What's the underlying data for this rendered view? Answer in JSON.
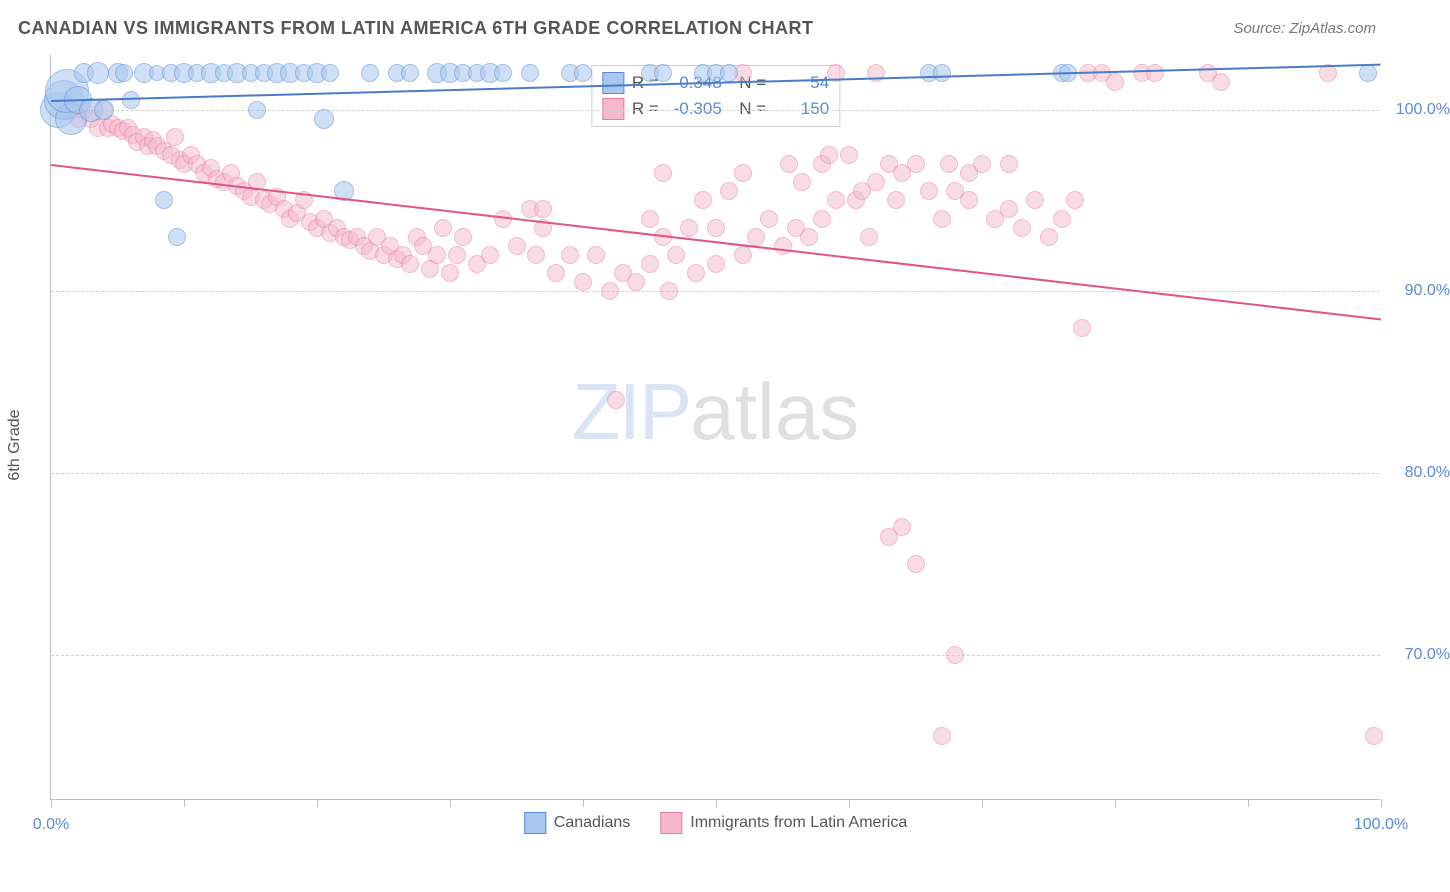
{
  "header": {
    "title": "CANADIAN VS IMMIGRANTS FROM LATIN AMERICA 6TH GRADE CORRELATION CHART",
    "source": "Source: ZipAtlas.com"
  },
  "chart": {
    "type": "scatter",
    "y_axis_title": "6th Grade",
    "xlim": [
      0,
      100
    ],
    "ylim": [
      62,
      103
    ],
    "x_ticks": [
      0,
      10,
      20,
      30,
      40,
      50,
      60,
      70,
      80,
      90,
      100
    ],
    "x_tick_labels": {
      "0": "0.0%",
      "100": "100.0%"
    },
    "y_ticks": [
      70,
      80,
      90,
      100
    ],
    "y_tick_labels": {
      "70": "70.0%",
      "80": "80.0%",
      "90": "90.0%",
      "100": "100.0%"
    },
    "background_color": "#ffffff",
    "grid_color": "#d0d0d0",
    "axis_color": "#c0c0c0",
    "tick_label_color": "#5b8bd4",
    "series": [
      {
        "name": "Canadians",
        "fill_color": "#a8c8f0",
        "stroke_color": "#5b8bd4",
        "fill_opacity": 0.55,
        "line_color": "#4a7bc8",
        "R": "0.348",
        "N": "54",
        "trend": {
          "x1": 0,
          "y1": 100.5,
          "x2": 100,
          "y2": 102.5
        },
        "points": [
          {
            "x": 0.5,
            "y": 100,
            "r": 18
          },
          {
            "x": 1,
            "y": 100.5,
            "r": 20
          },
          {
            "x": 1.5,
            "y": 99.5,
            "r": 16
          },
          {
            "x": 1.2,
            "y": 101,
            "r": 22
          },
          {
            "x": 2,
            "y": 100.5,
            "r": 14
          },
          {
            "x": 2.5,
            "y": 102,
            "r": 10
          },
          {
            "x": 3,
            "y": 100,
            "r": 12
          },
          {
            "x": 3.5,
            "y": 102,
            "r": 11
          },
          {
            "x": 4,
            "y": 100,
            "r": 10
          },
          {
            "x": 5,
            "y": 102,
            "r": 10
          },
          {
            "x": 5.5,
            "y": 102,
            "r": 9
          },
          {
            "x": 6,
            "y": 100.5,
            "r": 9
          },
          {
            "x": 7,
            "y": 102,
            "r": 10
          },
          {
            "x": 8,
            "y": 102,
            "r": 8
          },
          {
            "x": 8.5,
            "y": 95,
            "r": 9
          },
          {
            "x": 9,
            "y": 102,
            "r": 9
          },
          {
            "x": 10,
            "y": 102,
            "r": 10
          },
          {
            "x": 11,
            "y": 102,
            "r": 9
          },
          {
            "x": 12,
            "y": 102,
            "r": 10
          },
          {
            "x": 13,
            "y": 102,
            "r": 9
          },
          {
            "x": 14,
            "y": 102,
            "r": 10
          },
          {
            "x": 15,
            "y": 102,
            "r": 9
          },
          {
            "x": 15.5,
            "y": 100,
            "r": 9
          },
          {
            "x": 16,
            "y": 102,
            "r": 9
          },
          {
            "x": 17,
            "y": 102,
            "r": 10
          },
          {
            "x": 18,
            "y": 102,
            "r": 10
          },
          {
            "x": 19,
            "y": 102,
            "r": 9
          },
          {
            "x": 20,
            "y": 102,
            "r": 10
          },
          {
            "x": 20.5,
            "y": 99.5,
            "r": 10
          },
          {
            "x": 21,
            "y": 102,
            "r": 9
          },
          {
            "x": 22,
            "y": 95.5,
            "r": 10
          },
          {
            "x": 24,
            "y": 102,
            "r": 9
          },
          {
            "x": 26,
            "y": 102,
            "r": 9
          },
          {
            "x": 27,
            "y": 102,
            "r": 9
          },
          {
            "x": 29,
            "y": 102,
            "r": 10
          },
          {
            "x": 30,
            "y": 102,
            "r": 10
          },
          {
            "x": 31,
            "y": 102,
            "r": 9
          },
          {
            "x": 32,
            "y": 102,
            "r": 9
          },
          {
            "x": 33,
            "y": 102,
            "r": 10
          },
          {
            "x": 34,
            "y": 102,
            "r": 9
          },
          {
            "x": 36,
            "y": 102,
            "r": 9
          },
          {
            "x": 45,
            "y": 102,
            "r": 9
          },
          {
            "x": 46,
            "y": 102,
            "r": 9
          },
          {
            "x": 49,
            "y": 102,
            "r": 9
          },
          {
            "x": 50,
            "y": 102,
            "r": 9
          },
          {
            "x": 51,
            "y": 102,
            "r": 9
          },
          {
            "x": 9.5,
            "y": 93,
            "r": 9
          },
          {
            "x": 66,
            "y": 102,
            "r": 9
          },
          {
            "x": 67,
            "y": 102,
            "r": 9
          },
          {
            "x": 76,
            "y": 102,
            "r": 9
          },
          {
            "x": 76.5,
            "y": 102,
            "r": 9
          },
          {
            "x": 99,
            "y": 102,
            "r": 9
          },
          {
            "x": 39,
            "y": 102,
            "r": 9
          },
          {
            "x": 40,
            "y": 102,
            "r": 9
          }
        ]
      },
      {
        "name": "Immigrants from Latin America",
        "fill_color": "#f5b8cc",
        "stroke_color": "#e77ba1",
        "fill_opacity": 0.5,
        "line_color": "#e0568c",
        "R": "-0.305",
        "N": "150",
        "trend": {
          "x1": 0,
          "y1": 97,
          "x2": 100,
          "y2": 88.5
        },
        "points": [
          {
            "x": 1,
            "y": 100,
            "r": 10
          },
          {
            "x": 1.5,
            "y": 100,
            "r": 10
          },
          {
            "x": 2,
            "y": 99.5,
            "r": 9
          },
          {
            "x": 2.5,
            "y": 100,
            "r": 9
          },
          {
            "x": 3,
            "y": 99.5,
            "r": 9
          },
          {
            "x": 3.5,
            "y": 99,
            "r": 9
          },
          {
            "x": 4,
            "y": 100,
            "r": 9
          },
          {
            "x": 4.3,
            "y": 99,
            "r": 9
          },
          {
            "x": 4.6,
            "y": 99.2,
            "r": 9
          },
          {
            "x": 5,
            "y": 99,
            "r": 9
          },
          {
            "x": 5.4,
            "y": 98.8,
            "r": 9
          },
          {
            "x": 5.8,
            "y": 99,
            "r": 9
          },
          {
            "x": 6.2,
            "y": 98.6,
            "r": 9
          },
          {
            "x": 6.5,
            "y": 98.2,
            "r": 9
          },
          {
            "x": 7,
            "y": 98.5,
            "r": 9
          },
          {
            "x": 7.3,
            "y": 98,
            "r": 9
          },
          {
            "x": 7.7,
            "y": 98.3,
            "r": 9
          },
          {
            "x": 8,
            "y": 98,
            "r": 9
          },
          {
            "x": 8.5,
            "y": 97.7,
            "r": 9
          },
          {
            "x": 9,
            "y": 97.5,
            "r": 9
          },
          {
            "x": 9.3,
            "y": 98.5,
            "r": 9
          },
          {
            "x": 9.7,
            "y": 97.2,
            "r": 9
          },
          {
            "x": 10,
            "y": 97,
            "r": 9
          },
          {
            "x": 10.5,
            "y": 97.5,
            "r": 9
          },
          {
            "x": 11,
            "y": 97,
            "r": 9
          },
          {
            "x": 11.5,
            "y": 96.5,
            "r": 9
          },
          {
            "x": 12,
            "y": 96.8,
            "r": 9
          },
          {
            "x": 12.5,
            "y": 96.2,
            "r": 9
          },
          {
            "x": 13,
            "y": 96,
            "r": 9
          },
          {
            "x": 13.5,
            "y": 96.5,
            "r": 9
          },
          {
            "x": 14,
            "y": 95.8,
            "r": 9
          },
          {
            "x": 14.5,
            "y": 95.5,
            "r": 9
          },
          {
            "x": 15,
            "y": 95.2,
            "r": 9
          },
          {
            "x": 15.5,
            "y": 96,
            "r": 9
          },
          {
            "x": 16,
            "y": 95,
            "r": 9
          },
          {
            "x": 16.5,
            "y": 94.8,
            "r": 9
          },
          {
            "x": 17,
            "y": 95.2,
            "r": 9
          },
          {
            "x": 17.5,
            "y": 94.5,
            "r": 9
          },
          {
            "x": 18,
            "y": 94,
            "r": 9
          },
          {
            "x": 18.5,
            "y": 94.3,
            "r": 9
          },
          {
            "x": 19,
            "y": 95,
            "r": 9
          },
          {
            "x": 19.5,
            "y": 93.8,
            "r": 9
          },
          {
            "x": 20,
            "y": 93.5,
            "r": 9
          },
          {
            "x": 20.5,
            "y": 94,
            "r": 9
          },
          {
            "x": 21,
            "y": 93.2,
            "r": 9
          },
          {
            "x": 21.5,
            "y": 93.5,
            "r": 9
          },
          {
            "x": 22,
            "y": 93,
            "r": 9
          },
          {
            "x": 22.5,
            "y": 92.8,
            "r": 9
          },
          {
            "x": 23,
            "y": 93,
            "r": 9
          },
          {
            "x": 23.5,
            "y": 92.5,
            "r": 9
          },
          {
            "x": 24,
            "y": 92.2,
            "r": 9
          },
          {
            "x": 24.5,
            "y": 93,
            "r": 9
          },
          {
            "x": 25,
            "y": 92,
            "r": 9
          },
          {
            "x": 25.5,
            "y": 92.5,
            "r": 9
          },
          {
            "x": 26,
            "y": 91.8,
            "r": 9
          },
          {
            "x": 26.5,
            "y": 92,
            "r": 9
          },
          {
            "x": 27,
            "y": 91.5,
            "r": 9
          },
          {
            "x": 27.5,
            "y": 93,
            "r": 9
          },
          {
            "x": 28,
            "y": 92.5,
            "r": 9
          },
          {
            "x": 28.5,
            "y": 91.2,
            "r": 9
          },
          {
            "x": 29,
            "y": 92,
            "r": 9
          },
          {
            "x": 29.5,
            "y": 93.5,
            "r": 9
          },
          {
            "x": 30,
            "y": 91,
            "r": 9
          },
          {
            "x": 30.5,
            "y": 92,
            "r": 9
          },
          {
            "x": 31,
            "y": 93,
            "r": 9
          },
          {
            "x": 32,
            "y": 91.5,
            "r": 9
          },
          {
            "x": 33,
            "y": 92,
            "r": 9
          },
          {
            "x": 34,
            "y": 94,
            "r": 9
          },
          {
            "x": 35,
            "y": 92.5,
            "r": 9
          },
          {
            "x": 36,
            "y": 94.5,
            "r": 9
          },
          {
            "x": 36.5,
            "y": 92,
            "r": 9
          },
          {
            "x": 37,
            "y": 93.5,
            "r": 9
          },
          {
            "x": 37,
            "y": 94.5,
            "r": 9
          },
          {
            "x": 38,
            "y": 91,
            "r": 9
          },
          {
            "x": 39,
            "y": 92,
            "r": 9
          },
          {
            "x": 40,
            "y": 90.5,
            "r": 9
          },
          {
            "x": 41,
            "y": 92,
            "r": 9
          },
          {
            "x": 42,
            "y": 90,
            "r": 9
          },
          {
            "x": 42.5,
            "y": 84,
            "r": 9
          },
          {
            "x": 43,
            "y": 91,
            "r": 9
          },
          {
            "x": 44,
            "y": 90.5,
            "r": 9
          },
          {
            "x": 45,
            "y": 91.5,
            "r": 9
          },
          {
            "x": 45,
            "y": 94,
            "r": 9
          },
          {
            "x": 46,
            "y": 93,
            "r": 9
          },
          {
            "x": 46,
            "y": 96.5,
            "r": 9
          },
          {
            "x": 46.5,
            "y": 90,
            "r": 9
          },
          {
            "x": 47,
            "y": 92,
            "r": 9
          },
          {
            "x": 48,
            "y": 93.5,
            "r": 9
          },
          {
            "x": 48.5,
            "y": 91,
            "r": 9
          },
          {
            "x": 49,
            "y": 95,
            "r": 9
          },
          {
            "x": 50,
            "y": 91.5,
            "r": 9
          },
          {
            "x": 50,
            "y": 93.5,
            "r": 9
          },
          {
            "x": 51,
            "y": 95.5,
            "r": 9
          },
          {
            "x": 52,
            "y": 92,
            "r": 9
          },
          {
            "x": 52,
            "y": 96.5,
            "r": 9
          },
          {
            "x": 52,
            "y": 102,
            "r": 9
          },
          {
            "x": 53,
            "y": 93,
            "r": 9
          },
          {
            "x": 54,
            "y": 94,
            "r": 9
          },
          {
            "x": 55,
            "y": 92.5,
            "r": 9
          },
          {
            "x": 55.5,
            "y": 97,
            "r": 9
          },
          {
            "x": 56,
            "y": 93.5,
            "r": 9
          },
          {
            "x": 56.5,
            "y": 96,
            "r": 9
          },
          {
            "x": 57,
            "y": 93,
            "r": 9
          },
          {
            "x": 58,
            "y": 94,
            "r": 9
          },
          {
            "x": 58,
            "y": 97,
            "r": 9
          },
          {
            "x": 58.5,
            "y": 97.5,
            "r": 9
          },
          {
            "x": 59,
            "y": 95,
            "r": 9
          },
          {
            "x": 59,
            "y": 102,
            "r": 9
          },
          {
            "x": 60,
            "y": 97.5,
            "r": 9
          },
          {
            "x": 60.5,
            "y": 95,
            "r": 9
          },
          {
            "x": 61,
            "y": 95.5,
            "r": 9
          },
          {
            "x": 61.5,
            "y": 93,
            "r": 9
          },
          {
            "x": 62,
            "y": 96,
            "r": 9
          },
          {
            "x": 62,
            "y": 102,
            "r": 9
          },
          {
            "x": 63,
            "y": 97,
            "r": 9
          },
          {
            "x": 63,
            "y": 76.5,
            "r": 9
          },
          {
            "x": 63.5,
            "y": 95,
            "r": 9
          },
          {
            "x": 64,
            "y": 96.5,
            "r": 9
          },
          {
            "x": 64,
            "y": 77,
            "r": 9
          },
          {
            "x": 65,
            "y": 97,
            "r": 9
          },
          {
            "x": 65,
            "y": 75,
            "r": 9
          },
          {
            "x": 66,
            "y": 95.5,
            "r": 9
          },
          {
            "x": 67,
            "y": 94,
            "r": 9
          },
          {
            "x": 67,
            "y": 65.5,
            "r": 9
          },
          {
            "x": 67.5,
            "y": 97,
            "r": 9
          },
          {
            "x": 68,
            "y": 95.5,
            "r": 9
          },
          {
            "x": 68,
            "y": 70,
            "r": 9
          },
          {
            "x": 69,
            "y": 95,
            "r": 9
          },
          {
            "x": 69,
            "y": 96.5,
            "r": 9
          },
          {
            "x": 70,
            "y": 97,
            "r": 9
          },
          {
            "x": 71,
            "y": 94,
            "r": 9
          },
          {
            "x": 72,
            "y": 94.5,
            "r": 9
          },
          {
            "x": 72,
            "y": 97,
            "r": 9
          },
          {
            "x": 73,
            "y": 93.5,
            "r": 9
          },
          {
            "x": 74,
            "y": 95,
            "r": 9
          },
          {
            "x": 75,
            "y": 93,
            "r": 9
          },
          {
            "x": 76,
            "y": 94,
            "r": 9
          },
          {
            "x": 77,
            "y": 95,
            "r": 9
          },
          {
            "x": 77.5,
            "y": 88,
            "r": 9
          },
          {
            "x": 78,
            "y": 102,
            "r": 9
          },
          {
            "x": 79,
            "y": 102,
            "r": 9
          },
          {
            "x": 80,
            "y": 101.5,
            "r": 9
          },
          {
            "x": 82,
            "y": 102,
            "r": 9
          },
          {
            "x": 83,
            "y": 102,
            "r": 9
          },
          {
            "x": 87,
            "y": 102,
            "r": 9
          },
          {
            "x": 88,
            "y": 101.5,
            "r": 9
          },
          {
            "x": 96,
            "y": 102,
            "r": 9
          },
          {
            "x": 99.5,
            "y": 65.5,
            "r": 9
          }
        ]
      }
    ],
    "legend_bottom": [
      {
        "label": "Canadians",
        "fill": "#a8c8f0",
        "stroke": "#5b8bd4"
      },
      {
        "label": "Immigrants from Latin America",
        "fill": "#f5b8cc",
        "stroke": "#e77ba1"
      }
    ],
    "watermark": {
      "part1": "ZIP",
      "part2": "atlas"
    }
  }
}
